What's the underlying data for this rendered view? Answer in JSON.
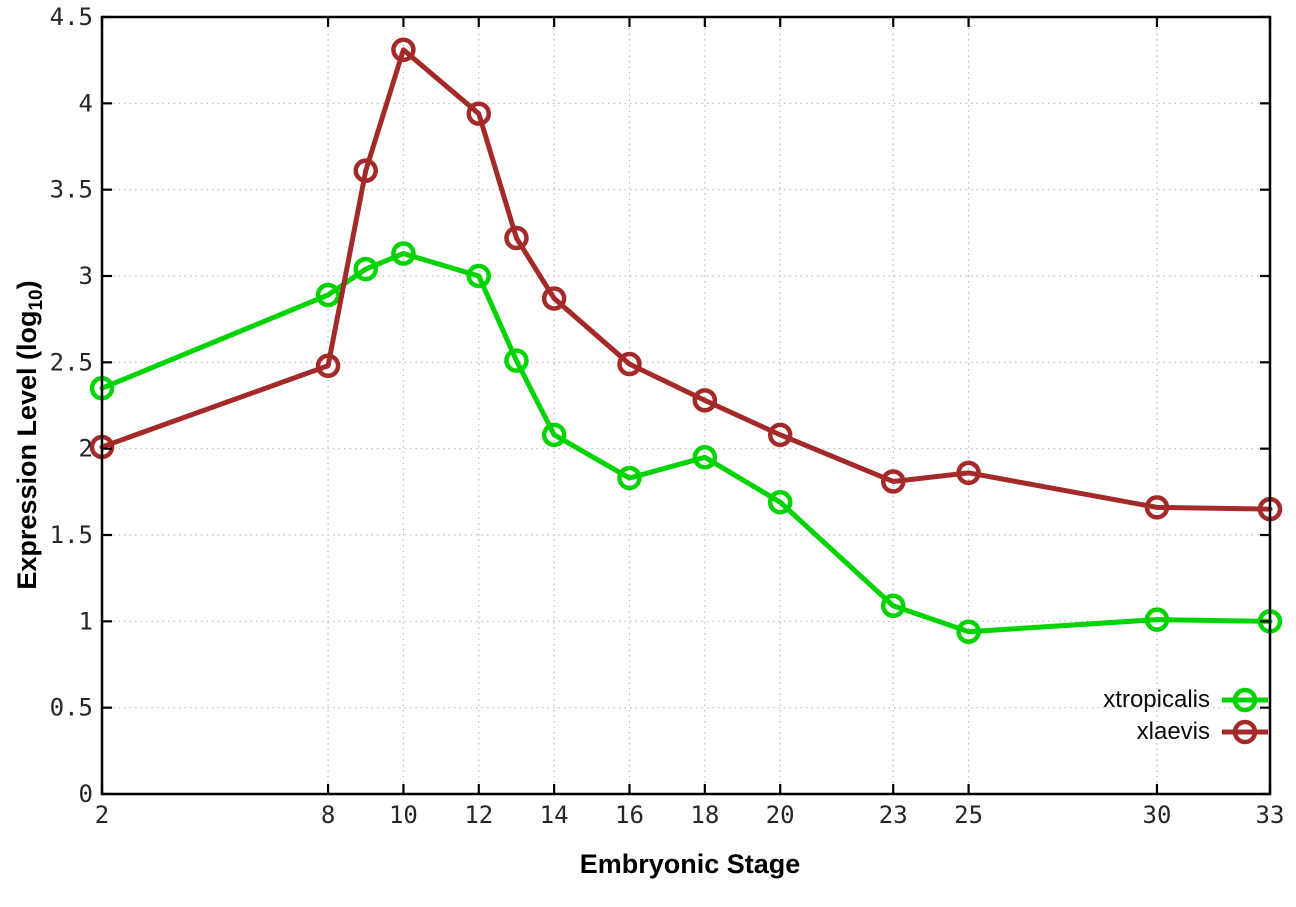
{
  "background_color": "#ffffff",
  "chart_data": {
    "type": "line",
    "title": "",
    "xlabel": "Embryonic Stage",
    "ylabel": "Expression Level (log10)",
    "ylabel_parts": {
      "prefix": "Expression Level (log",
      "sub": "10",
      "suffix": ")"
    },
    "x": [
      2,
      8,
      9,
      10,
      12,
      13,
      14,
      16,
      18,
      20,
      23,
      25,
      30,
      33
    ],
    "xlim": [
      2,
      33
    ],
    "ylim": [
      0,
      4.5
    ],
    "xticks": [
      2,
      8,
      10,
      12,
      14,
      16,
      18,
      20,
      23,
      25,
      30,
      33
    ],
    "yticks": [
      0,
      0.5,
      1,
      1.5,
      2,
      2.5,
      3,
      3.5,
      4,
      4.5
    ],
    "grid": true,
    "grid_style": "dotted",
    "grid_color": "#bcbcbc",
    "border_color": "#000000",
    "legend_position": "bottom-right",
    "series": [
      {
        "name": "xtropicalis",
        "color": "#00d400",
        "marker": "open-circle",
        "values": [
          2.35,
          2.89,
          3.04,
          3.13,
          3.0,
          2.51,
          2.08,
          1.83,
          1.95,
          1.69,
          1.09,
          0.94,
          1.01,
          1.0
        ]
      },
      {
        "name": "xlaevis",
        "color": "#a42a2a",
        "marker": "open-circle",
        "values": [
          2.01,
          2.48,
          3.61,
          4.31,
          3.94,
          3.22,
          2.87,
          2.49,
          2.28,
          2.08,
          1.81,
          1.86,
          1.66,
          1.65
        ]
      }
    ]
  }
}
